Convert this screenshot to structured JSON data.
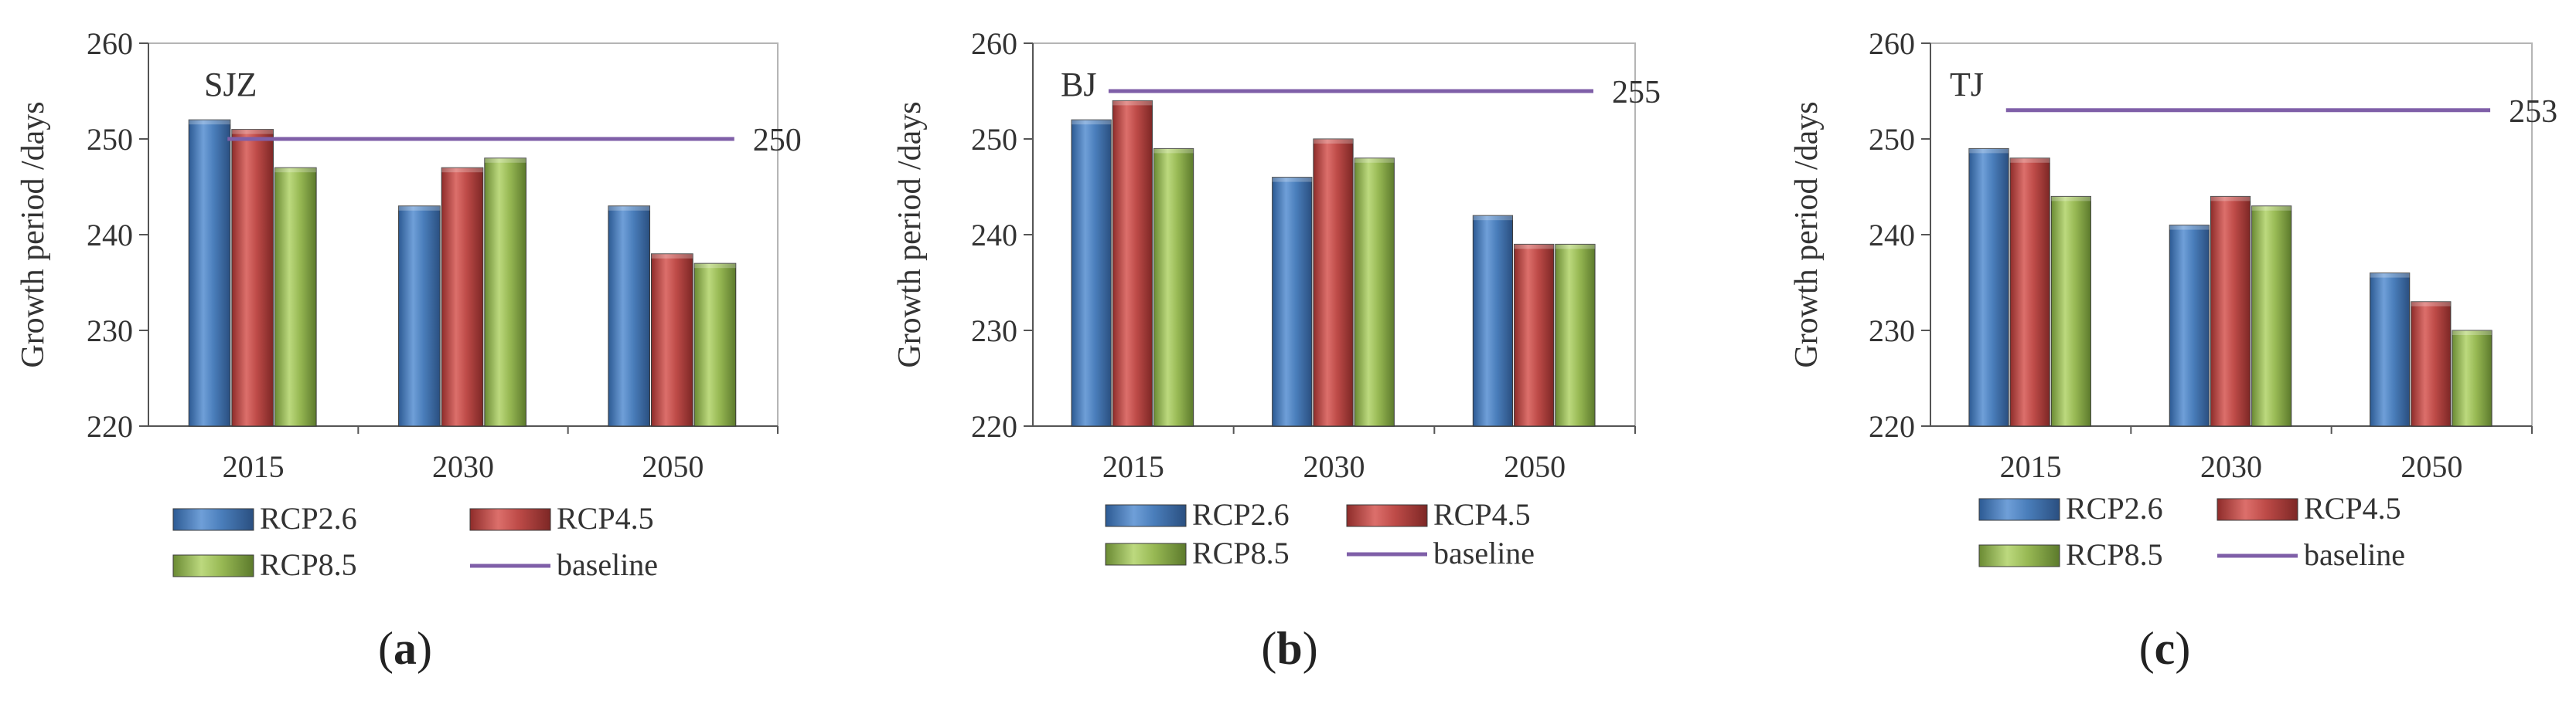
{
  "chart_data": [
    {
      "type": "bar",
      "title": "SJZ",
      "panel": "a",
      "categories": [
        "2015",
        "2030",
        "2050"
      ],
      "ylabel": "Growth period /days",
      "xlabel": "",
      "ylim": [
        220,
        260
      ],
      "yticks": [
        220,
        230,
        240,
        250,
        260
      ],
      "grid": false,
      "legend_position": "bottom",
      "series": [
        {
          "name": "RCP2.6",
          "values": [
            252,
            243,
            243
          ]
        },
        {
          "name": "RCP4.5",
          "values": [
            251,
            247,
            238
          ]
        },
        {
          "name": "RCP8.5",
          "values": [
            247,
            248,
            237
          ]
        }
      ],
      "baseline": {
        "name": "baseline",
        "value": 250,
        "label": "250"
      }
    },
    {
      "type": "bar",
      "title": "BJ",
      "panel": "b",
      "categories": [
        "2015",
        "2030",
        "2050"
      ],
      "ylabel": "Growth period /days",
      "xlabel": "",
      "ylim": [
        220,
        260
      ],
      "yticks": [
        220,
        230,
        240,
        250,
        260
      ],
      "grid": false,
      "legend_position": "bottom",
      "series": [
        {
          "name": "RCP2.6",
          "values": [
            252,
            246,
            242
          ]
        },
        {
          "name": "RCP4.5",
          "values": [
            254,
            250,
            239
          ]
        },
        {
          "name": "RCP8.5",
          "values": [
            249,
            248,
            239
          ]
        }
      ],
      "baseline": {
        "name": "baseline",
        "value": 255,
        "label": "255"
      }
    },
    {
      "type": "bar",
      "title": "TJ",
      "panel": "c",
      "categories": [
        "2015",
        "2030",
        "2050"
      ],
      "ylabel": "Growth period /days",
      "xlabel": "",
      "ylim": [
        220,
        260
      ],
      "yticks": [
        220,
        230,
        240,
        250,
        260
      ],
      "grid": false,
      "legend_position": "bottom",
      "series": [
        {
          "name": "RCP2.6",
          "values": [
            249,
            241,
            236
          ]
        },
        {
          "name": "RCP4.5",
          "values": [
            248,
            244,
            233
          ]
        },
        {
          "name": "RCP8.5",
          "values": [
            244,
            243,
            230
          ]
        }
      ],
      "baseline": {
        "name": "baseline",
        "value": 253,
        "label": "253"
      }
    }
  ],
  "colors": {
    "RCP2.6": "#4a7ebb",
    "RCP4.5": "#be4b48",
    "RCP8.5": "#98b954",
    "baseline": "#7f5fa8"
  }
}
